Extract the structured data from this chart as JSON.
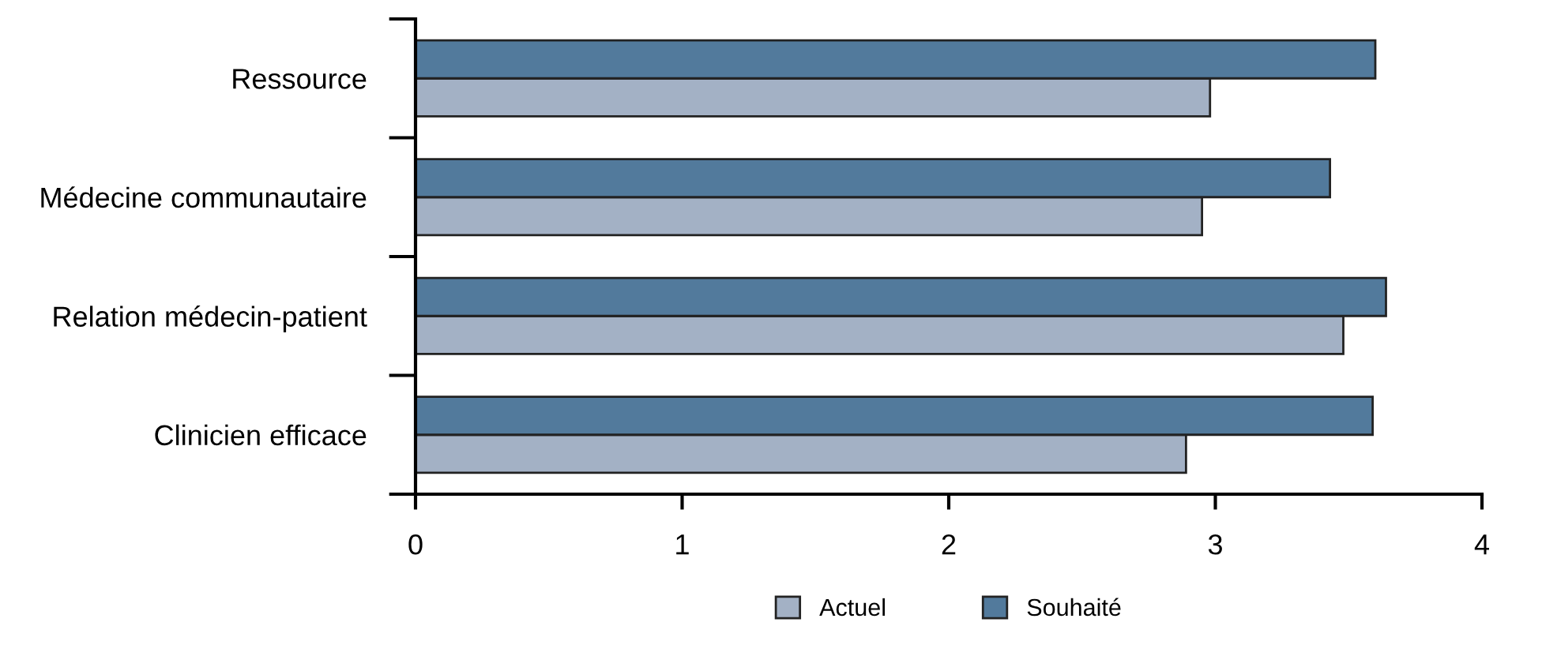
{
  "chart_data": {
    "type": "bar",
    "orientation": "horizontal",
    "categories": [
      "Ressource",
      "Médecine communautaire",
      "Relation médecin-patient",
      "Clinicien efficace"
    ],
    "series": [
      {
        "name": "Actuel",
        "color": "#a3b1c5",
        "values": [
          2.98,
          2.95,
          3.48,
          2.89
        ]
      },
      {
        "name": "Souhaité",
        "color": "#527a9c",
        "values": [
          3.6,
          3.43,
          3.64,
          3.59
        ]
      }
    ],
    "xlim": [
      0,
      4
    ],
    "xticks": [
      0,
      1,
      2,
      3,
      4
    ],
    "grid": false,
    "legend": "bottom"
  }
}
